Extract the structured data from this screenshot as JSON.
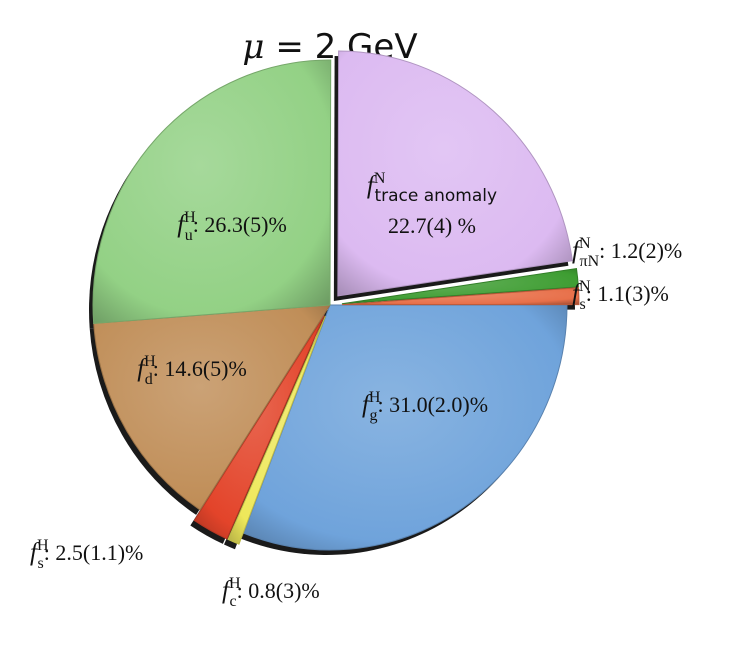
{
  "chart_data": {
    "type": "pie",
    "title": "μ = 2 GeV",
    "title_parts": {
      "symbol": "μ",
      "rest": " = 2 GeV"
    },
    "unit": "%",
    "slices": [
      {
        "label": "f_g^H",
        "value": 31.0,
        "value_text": "31.0(2.0)%",
        "sup": "H",
        "sub": "g",
        "color": "#6fa3db",
        "exploded": false
      },
      {
        "label": "f_c^H",
        "value": 0.8,
        "value_text": "0.8(3)%",
        "sup": "H",
        "sub": "c",
        "color": "#eee85a",
        "exploded": true
      },
      {
        "label": "f_s^H",
        "value": 2.5,
        "value_text": "2.5(1.1)%",
        "sup": "H",
        "sub": "s",
        "color": "#e3442a",
        "exploded": true
      },
      {
        "label": "f_d^H",
        "value": 14.6,
        "value_text": "14.6(5)%",
        "sup": "H",
        "sub": "d",
        "color": "#c08e58",
        "exploded": false
      },
      {
        "label": "f_u^H",
        "value": 26.3,
        "value_text": "26.3(5)%",
        "sup": "H",
        "sub": "u",
        "color": "#93d185",
        "exploded": false
      },
      {
        "label": "f_trace anomaly^N",
        "value": 22.7,
        "value_text": "22.7(4) %",
        "sup": "N",
        "sub": "trace anomaly",
        "color": "#dcbaf1",
        "exploded": true
      },
      {
        "label": "f_πN^N",
        "value": 1.2,
        "value_text": "1.2(2)%",
        "sup": "N",
        "sub": "πN",
        "color": "#3e9d32",
        "exploded": true
      },
      {
        "label": "f_s^N",
        "value": 1.1,
        "value_text": "1.1(3)%",
        "sup": "N",
        "sub": "s",
        "color": "#e8704a",
        "exploded": true
      }
    ]
  }
}
